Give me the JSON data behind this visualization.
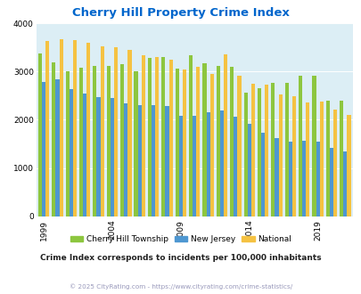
{
  "title": "Cherry Hill Property Crime Index",
  "title_color": "#0066cc",
  "years": [
    1999,
    2000,
    2001,
    2002,
    2003,
    2004,
    2005,
    2006,
    2007,
    2008,
    2009,
    2010,
    2011,
    2012,
    2013,
    2014,
    2015,
    2016,
    2017,
    2018,
    2019,
    2020,
    2021
  ],
  "cherry_hill": [
    3370,
    3190,
    3010,
    3090,
    3110,
    3110,
    3160,
    3010,
    3290,
    3300,
    3070,
    3350,
    3170,
    3110,
    3100,
    2570,
    2650,
    2760,
    2760,
    2910,
    2910,
    2390,
    2390
  ],
  "new_jersey": [
    2780,
    2850,
    2640,
    2550,
    2470,
    2450,
    2350,
    2300,
    2300,
    2280,
    2090,
    2090,
    2160,
    2200,
    2070,
    1920,
    1730,
    1620,
    1550,
    1560,
    1550,
    1420,
    1340
  ],
  "national": [
    3630,
    3680,
    3660,
    3600,
    3530,
    3510,
    3450,
    3340,
    3310,
    3250,
    3040,
    3100,
    2960,
    3360,
    2920,
    2740,
    2730,
    2520,
    2490,
    2360,
    2380,
    2210,
    2100
  ],
  "cherry_color": "#8dc63f",
  "nj_color": "#4e97d1",
  "national_color": "#f5c242",
  "plot_bg": "#dceef5",
  "ylim": [
    0,
    4000
  ],
  "yticks": [
    0,
    1000,
    2000,
    3000,
    4000
  ],
  "subtitle": "Crime Index corresponds to incidents per 100,000 inhabitants",
  "subtitle_color": "#222222",
  "footer": "© 2025 CityRating.com - https://www.cityrating.com/crime-statistics/",
  "footer_color": "#9999bb",
  "legend_labels": [
    "Cherry Hill Township",
    "New Jersey",
    "National"
  ],
  "xtick_years": [
    1999,
    2004,
    2009,
    2014,
    2019
  ],
  "bar_width": 0.27
}
